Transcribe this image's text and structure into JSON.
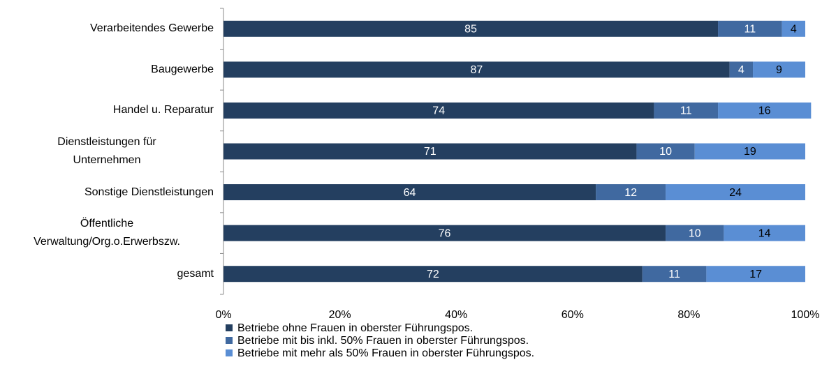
{
  "chart_data": {
    "type": "stacked-bar-horizontal",
    "categories": [
      "Verarbeitendes Gewerbe",
      "Baugewerbe",
      "Handel u. Reparatur",
      "Dienstleistungen für\nUnternehmen",
      "Sonstige Dienstleistungen",
      "Öffentliche\nVerwaltung/Org.o.Erwerbszw.",
      "gesamt"
    ],
    "series": [
      {
        "name": "Betriebe ohne Frauen in oberster Führungspos.",
        "color": "#243f60",
        "label_color": "#ffffff",
        "values": [
          85,
          87,
          74,
          71,
          64,
          76,
          72
        ]
      },
      {
        "name": "Betriebe mit bis inkl. 50% Frauen in oberster Führungspos.",
        "color": "#4069a0",
        "label_color": "#ffffff",
        "values": [
          11,
          4,
          11,
          10,
          12,
          10,
          11
        ]
      },
      {
        "name": "Betriebe mit mehr als 50% Frauen in oberster Führungspos.",
        "color": "#5a8ed4",
        "label_color": "#000000",
        "values": [
          4,
          9,
          16,
          19,
          24,
          14,
          17
        ]
      }
    ],
    "xlim": [
      0,
      100
    ],
    "xticks": [
      {
        "value": 0,
        "label": "0%"
      },
      {
        "value": 20,
        "label": "20%"
      },
      {
        "value": 40,
        "label": "40%"
      },
      {
        "value": 60,
        "label": "60%"
      },
      {
        "value": 80,
        "label": "80%"
      },
      {
        "value": 100,
        "label": "100%"
      }
    ],
    "legend": "bottom-left"
  }
}
